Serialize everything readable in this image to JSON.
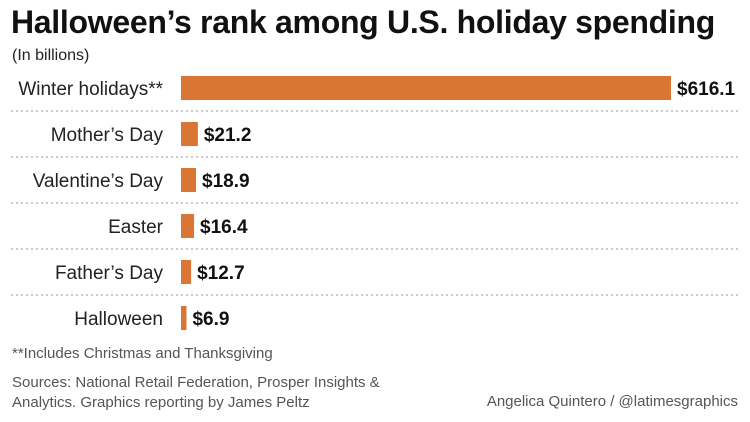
{
  "header": {
    "title": "Halloween’s rank among U.S. holiday spending",
    "subtitle": "(In billions)"
  },
  "chart_data": {
    "type": "bar",
    "orientation": "horizontal",
    "categories": [
      "Winter holidays**",
      "Mother’s Day",
      "Valentine’s Day",
      "Easter",
      "Father’s Day",
      "Halloween"
    ],
    "values": [
      616.1,
      21.2,
      18.9,
      16.4,
      12.7,
      6.9
    ],
    "value_labels": [
      "$616.1",
      "$21.2",
      "$18.9",
      "$16.4",
      "$12.7",
      "$6.9"
    ],
    "unit": "billions of dollars",
    "bar_color": "#d97634",
    "separator_color": "#9a9a9a",
    "grid": false,
    "legend": false
  },
  "footer": {
    "note": "**Includes Christmas and Thanksgiving",
    "sources": "Sources: National Retail Federation, Prosper Insights & Analytics. Graphics reporting by James Peltz",
    "credit": "Angelica Quintero / @latimesgraphics"
  }
}
